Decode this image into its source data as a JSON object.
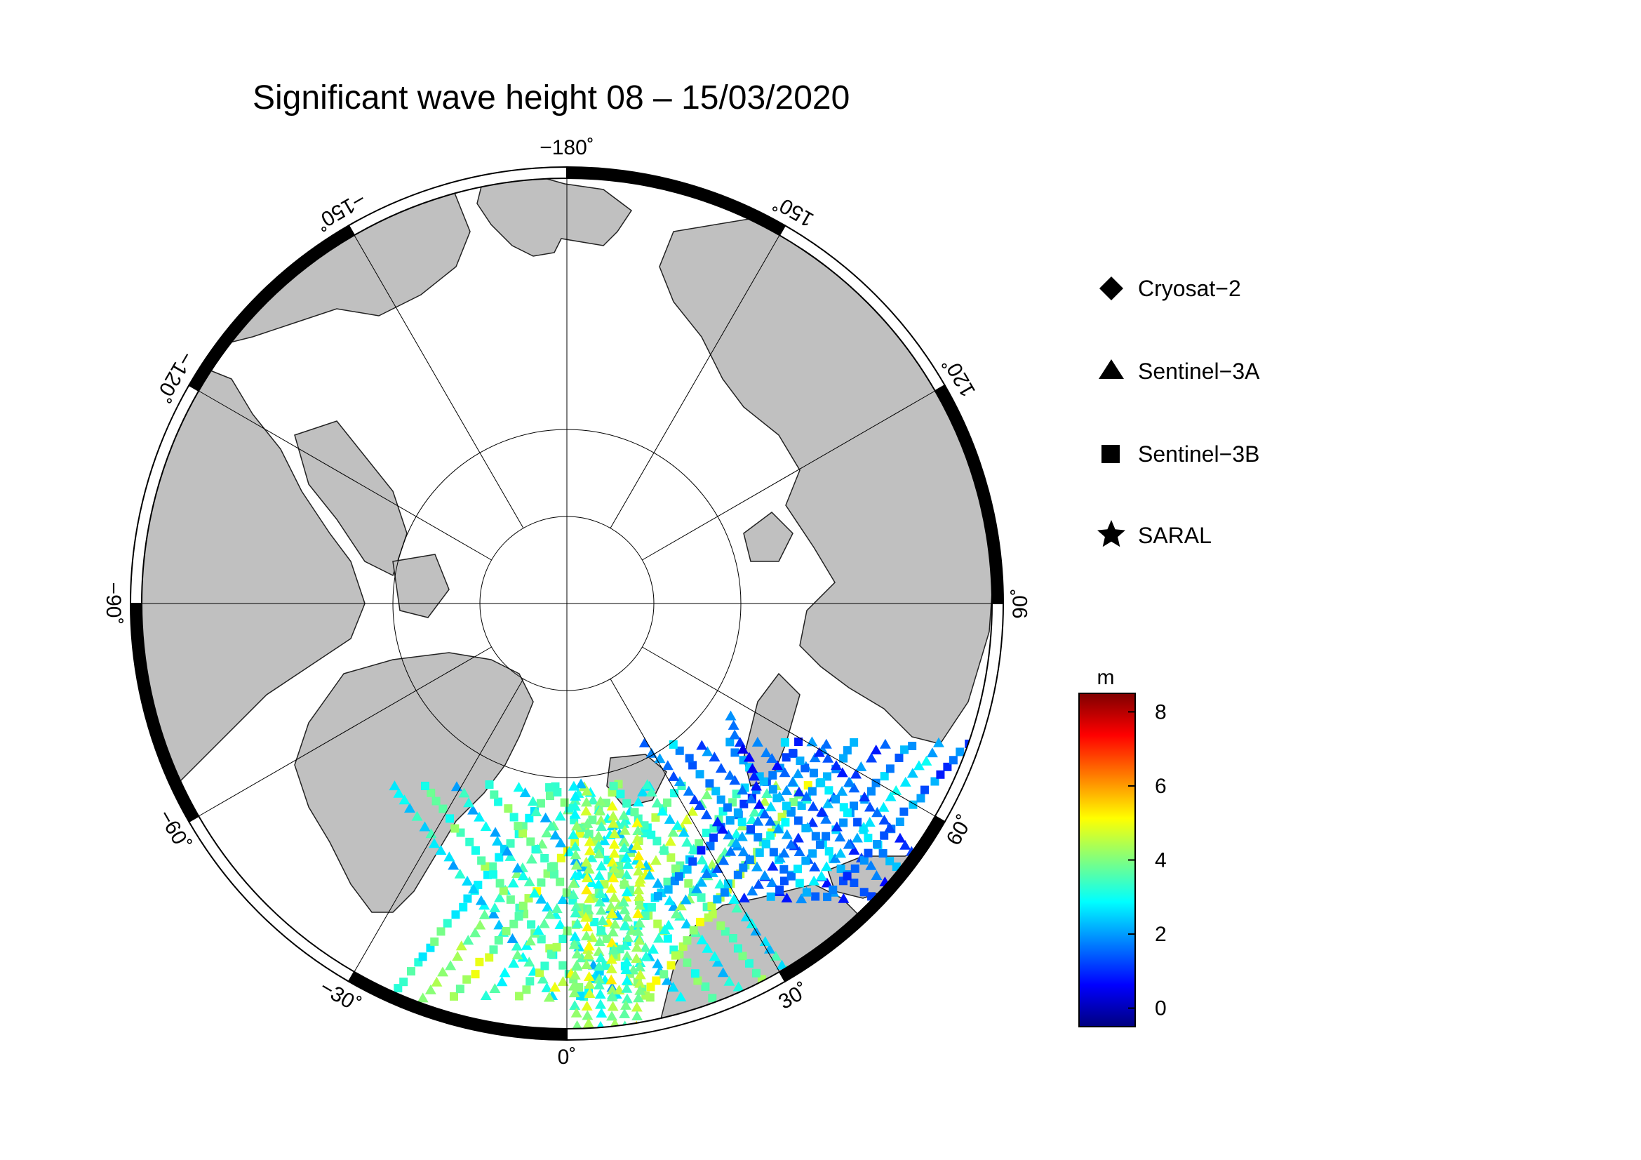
{
  "title": "Significant wave height 08 – 15/03/2020",
  "longitude_labels": [
    {
      "lon": -180,
      "text": "−180˚"
    },
    {
      "lon": -150,
      "text": "−150˚"
    },
    {
      "lon": -120,
      "text": "−120˚"
    },
    {
      "lon": -90,
      "text": "−90˚"
    },
    {
      "lon": -60,
      "text": "−60˚"
    },
    {
      "lon": -30,
      "text": "−30˚"
    },
    {
      "lon": 0,
      "text": "0˚"
    },
    {
      "lon": 30,
      "text": "30˚"
    },
    {
      "lon": 60,
      "text": "60˚"
    },
    {
      "lon": 90,
      "text": "90˚"
    },
    {
      "lon": 120,
      "text": "120˚"
    },
    {
      "lon": 150,
      "text": "150˚"
    }
  ],
  "legend": [
    {
      "symbol": "diamond-icon",
      "label": "Cryosat−2"
    },
    {
      "symbol": "triangle-icon",
      "label": "Sentinel−3A"
    },
    {
      "symbol": "square-icon",
      "label": "Sentinel−3B"
    },
    {
      "symbol": "star-icon",
      "label": "SARAL"
    }
  ],
  "colorbar": {
    "unit": "m",
    "min": -0.5,
    "max": 8.5,
    "ticks": [
      0,
      2,
      4,
      6,
      8
    ],
    "tick_labels": [
      "0",
      "2",
      "4",
      "6",
      "8"
    ],
    "colormap": "jet"
  },
  "colors": {
    "land": "#c0c0c0",
    "ocean": "#ffffff",
    "frame_dark": "#000000"
  }
}
